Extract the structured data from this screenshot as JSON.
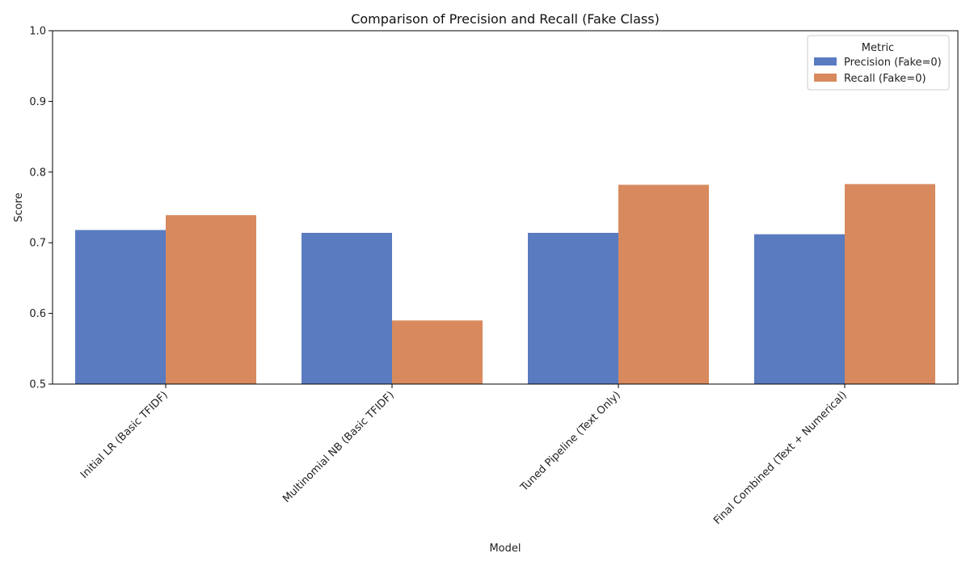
{
  "chart_data": {
    "type": "bar",
    "title": "Comparison of Precision and Recall (Fake Class)",
    "xlabel": "Model",
    "ylabel": "Score",
    "ylim": [
      0.5,
      1.0
    ],
    "yticks": [
      "0.5",
      "0.6",
      "0.7",
      "0.8",
      "0.9",
      "1.0"
    ],
    "categories": [
      "Initial LR (Basic TFIDF)",
      "Multinomial NB (Basic TFIDF)",
      "Tuned Pipeline (Text Only)",
      "Final Combined (Text + Numerical)"
    ],
    "series": [
      {
        "name": "Precision (Fake=0)",
        "color": "#5a7bc0",
        "values": [
          0.718,
          0.714,
          0.714,
          0.712
        ]
      },
      {
        "name": "Recall (Fake=0)",
        "color": "#d88a5e",
        "values": [
          0.739,
          0.59,
          0.782,
          0.783
        ]
      }
    ],
    "legend": {
      "title": "Metric",
      "position": "top-right"
    },
    "grid": false
  }
}
